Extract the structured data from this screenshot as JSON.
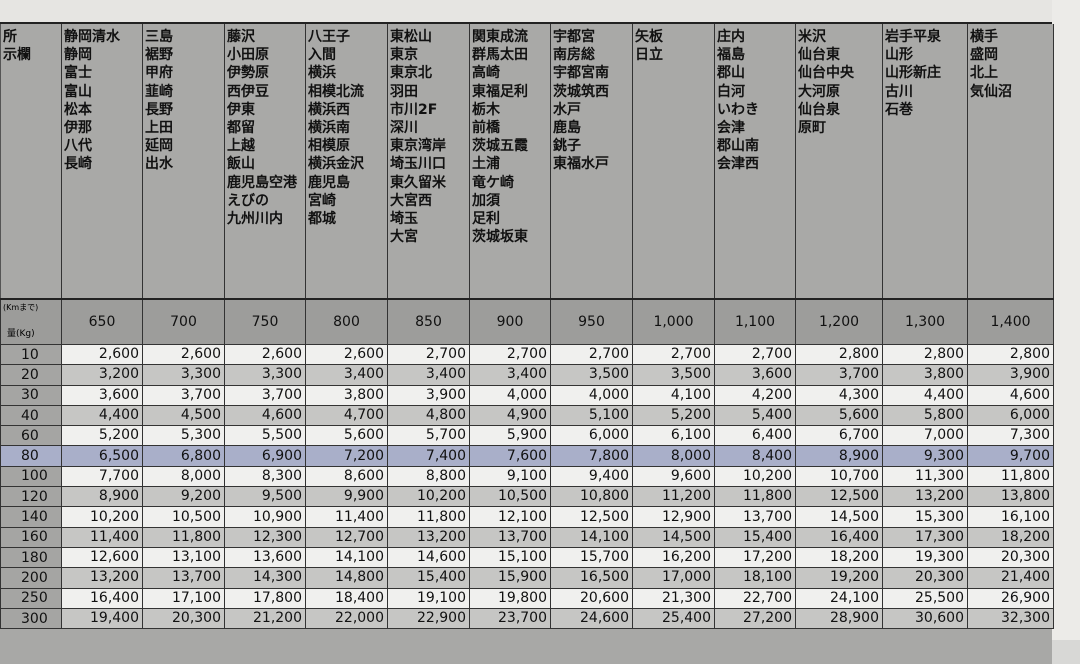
{
  "header": {
    "area_label_lines": [
      "所",
      "示欄"
    ],
    "distance_label": "(Kmまで)",
    "weight_label": "量(Kg)"
  },
  "columns": [
    {
      "distance": "650",
      "areas": [
        "静岡清水",
        "静岡",
        "富士",
        "富山",
        "松本",
        "伊那",
        "八代",
        "長崎"
      ]
    },
    {
      "distance": "700",
      "areas": [
        "三島",
        "裾野",
        "甲府",
        "韮崎",
        "長野",
        "上田",
        "延岡",
        "出水"
      ]
    },
    {
      "distance": "750",
      "areas": [
        "藤沢",
        "小田原",
        "伊勢原",
        "西伊豆",
        "伊東",
        "都留",
        "上越",
        "飯山",
        "鹿児島空港",
        "えびの",
        "九州川内"
      ]
    },
    {
      "distance": "800",
      "areas": [
        "八王子",
        "入間",
        "横浜",
        "相模北流",
        "横浜西",
        "横浜南",
        "相模原",
        "横浜金沢",
        "鹿児島",
        "宮崎",
        "都城"
      ]
    },
    {
      "distance": "850",
      "areas": [
        "東松山",
        "東京",
        "東京北",
        "羽田",
        "市川2F",
        "深川",
        "東京湾岸",
        "埼玉川口",
        "東久留米",
        "大宮西",
        "埼玉",
        "大宮"
      ]
    },
    {
      "distance": "900",
      "areas": [
        "関東成流",
        "群馬太田",
        "高崎",
        "東福足利",
        "栃木",
        "前橋",
        "茨城五霞",
        "土浦",
        "竜ケ崎",
        "加須",
        "足利",
        "茨城坂東"
      ]
    },
    {
      "distance": "950",
      "areas": [
        "宇都宮",
        "南房総",
        "宇都宮南",
        "茨城筑西",
        "水戸",
        "鹿島",
        "銚子",
        "東福水戸"
      ]
    },
    {
      "distance": "1,000",
      "areas": [
        "矢板",
        "日立"
      ]
    },
    {
      "distance": "1,100",
      "areas": [
        "庄内",
        "福島",
        "郡山",
        "白河",
        "いわき",
        "会津",
        "郡山南",
        "会津西"
      ]
    },
    {
      "distance": "1,200",
      "areas": [
        "米沢",
        "仙台東",
        "仙台中央",
        "大河原",
        "仙台泉",
        "原町"
      ]
    },
    {
      "distance": "1,300",
      "areas": [
        "岩手平泉",
        "山形",
        "山形新庄",
        "古川",
        "石巻"
      ]
    },
    {
      "distance": "1,400",
      "areas": [
        "横手",
        "盛岡",
        "北上",
        "気仙沼"
      ]
    }
  ],
  "rows": [
    {
      "weight": "10",
      "values": [
        "2,600",
        "2,600",
        "2,600",
        "2,600",
        "2,700",
        "2,700",
        "2,700",
        "2,700",
        "2,700",
        "2,800",
        "2,800",
        "2,800"
      ]
    },
    {
      "weight": "20",
      "values": [
        "3,200",
        "3,300",
        "3,300",
        "3,400",
        "3,400",
        "3,400",
        "3,500",
        "3,500",
        "3,600",
        "3,700",
        "3,800",
        "3,900"
      ]
    },
    {
      "weight": "30",
      "values": [
        "3,600",
        "3,700",
        "3,700",
        "3,800",
        "3,900",
        "4,000",
        "4,000",
        "4,100",
        "4,200",
        "4,300",
        "4,400",
        "4,600"
      ]
    },
    {
      "weight": "40",
      "values": [
        "4,400",
        "4,500",
        "4,600",
        "4,700",
        "4,800",
        "4,900",
        "5,100",
        "5,200",
        "5,400",
        "5,600",
        "5,800",
        "6,000"
      ]
    },
    {
      "weight": "60",
      "values": [
        "5,200",
        "5,300",
        "5,500",
        "5,600",
        "5,700",
        "5,900",
        "6,000",
        "6,100",
        "6,400",
        "6,700",
        "7,000",
        "7,300"
      ]
    },
    {
      "weight": "80",
      "highlighted": true,
      "values": [
        "6,500",
        "6,800",
        "6,900",
        "7,200",
        "7,400",
        "7,600",
        "7,800",
        "8,000",
        "8,400",
        "8,900",
        "9,300",
        "9,700"
      ]
    },
    {
      "weight": "100",
      "values": [
        "7,700",
        "8,000",
        "8,300",
        "8,600",
        "8,800",
        "9,100",
        "9,400",
        "9,600",
        "10,200",
        "10,700",
        "11,300",
        "11,800"
      ]
    },
    {
      "weight": "120",
      "values": [
        "8,900",
        "9,200",
        "9,500",
        "9,900",
        "10,200",
        "10,500",
        "10,800",
        "11,200",
        "11,800",
        "12,500",
        "13,200",
        "13,800"
      ]
    },
    {
      "weight": "140",
      "values": [
        "10,200",
        "10,500",
        "10,900",
        "11,400",
        "11,800",
        "12,100",
        "12,500",
        "12,900",
        "13,700",
        "14,500",
        "15,300",
        "16,100"
      ]
    },
    {
      "weight": "160",
      "values": [
        "11,400",
        "11,800",
        "12,300",
        "12,700",
        "13,200",
        "13,700",
        "14,100",
        "14,500",
        "15,400",
        "16,400",
        "17,300",
        "18,200"
      ]
    },
    {
      "weight": "180",
      "values": [
        "12,600",
        "13,100",
        "13,600",
        "14,100",
        "14,600",
        "15,100",
        "15,700",
        "16,200",
        "17,200",
        "18,200",
        "19,300",
        "20,300"
      ]
    },
    {
      "weight": "200",
      "values": [
        "13,200",
        "13,700",
        "14,300",
        "14,800",
        "15,400",
        "15,900",
        "16,500",
        "17,000",
        "18,100",
        "19,200",
        "20,300",
        "21,400"
      ]
    },
    {
      "weight": "250",
      "values": [
        "16,400",
        "17,100",
        "17,800",
        "18,400",
        "19,100",
        "19,800",
        "20,600",
        "21,300",
        "22,700",
        "24,100",
        "25,500",
        "26,900"
      ]
    },
    {
      "weight": "300",
      "values": [
        "19,400",
        "20,300",
        "21,200",
        "22,000",
        "22,900",
        "23,700",
        "24,600",
        "25,400",
        "27,200",
        "28,900",
        "30,600",
        "32,300"
      ]
    }
  ],
  "colors": {
    "highlight_marker": "#a9afc9",
    "header_gray": "#a9a9a7"
  }
}
